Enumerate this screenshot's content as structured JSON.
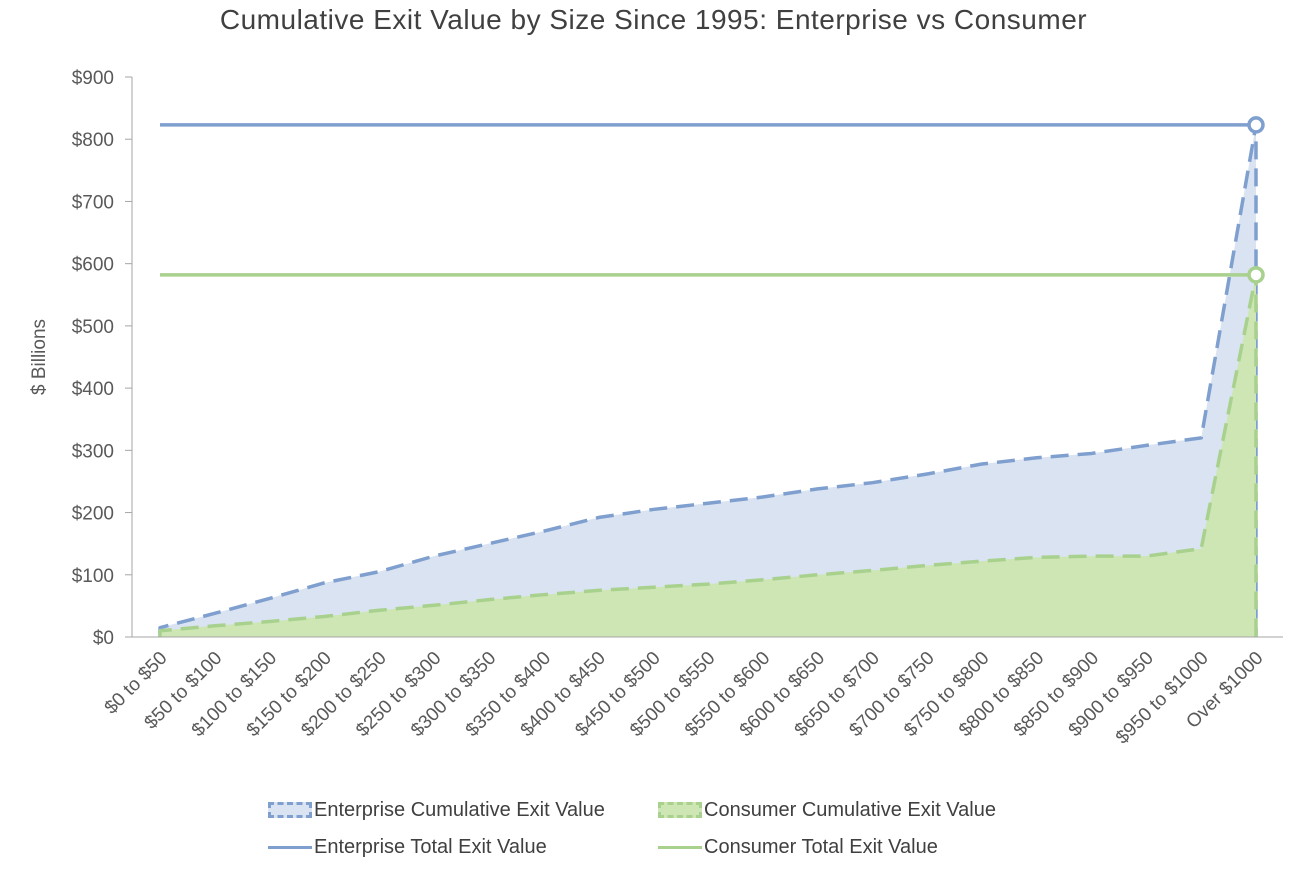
{
  "chart_data": {
    "type": "area",
    "title": "Cumulative Exit Value by Size Since 1995: Enterprise vs Consumer",
    "xlabel": "",
    "ylabel": "$ Billions",
    "ylim": [
      0,
      900
    ],
    "yticks": [
      "$0",
      "$100",
      "$200",
      "$300",
      "$400",
      "$500",
      "$600",
      "$700",
      "$800",
      "$900"
    ],
    "ytick_values": [
      0,
      100,
      200,
      300,
      400,
      500,
      600,
      700,
      800,
      900
    ],
    "categories": [
      "$0 to $50",
      "$50 to $100",
      "$100 to $150",
      "$150 to $200",
      "$200 to $250",
      "$250 to $300",
      "$300 to $350",
      "$350 to $400",
      "$400 to $450",
      "$450 to $500",
      "$500 to $550",
      "$550 to $600",
      "$600 to $650",
      "$650 to $700",
      "$700 to $750",
      "$750 to $800",
      "$800 to $850",
      "$850 to $900",
      "$900 to $950",
      "$950 to $1000",
      "Over $1000"
    ],
    "series": [
      {
        "name": "Enterprise Cumulative Exit Value",
        "kind": "area-dashed",
        "color": "#7f9fcf",
        "fill": "#d9e3f2",
        "values": [
          15,
          38,
          62,
          87,
          105,
          130,
          150,
          170,
          192,
          205,
          215,
          225,
          238,
          248,
          262,
          278,
          288,
          295,
          308,
          320,
          823
        ]
      },
      {
        "name": "Consumer Cumulative Exit Value",
        "kind": "area-dashed",
        "color": "#a9d18e",
        "fill": "#cde6b4",
        "values": [
          10,
          18,
          25,
          33,
          43,
          51,
          60,
          68,
          75,
          80,
          85,
          92,
          100,
          107,
          115,
          122,
          128,
          130,
          130,
          142,
          582
        ]
      },
      {
        "name": "Enterprise Total Exit Value",
        "kind": "line",
        "color": "#7f9fcf",
        "values": [
          823,
          823,
          823,
          823,
          823,
          823,
          823,
          823,
          823,
          823,
          823,
          823,
          823,
          823,
          823,
          823,
          823,
          823,
          823,
          823,
          823
        ]
      },
      {
        "name": "Consumer Total Exit Value",
        "kind": "line",
        "color": "#a9d18e",
        "values": [
          582,
          582,
          582,
          582,
          582,
          582,
          582,
          582,
          582,
          582,
          582,
          582,
          582,
          582,
          582,
          582,
          582,
          582,
          582,
          582,
          582
        ]
      }
    ],
    "legend_position": "bottom",
    "grid": false
  }
}
